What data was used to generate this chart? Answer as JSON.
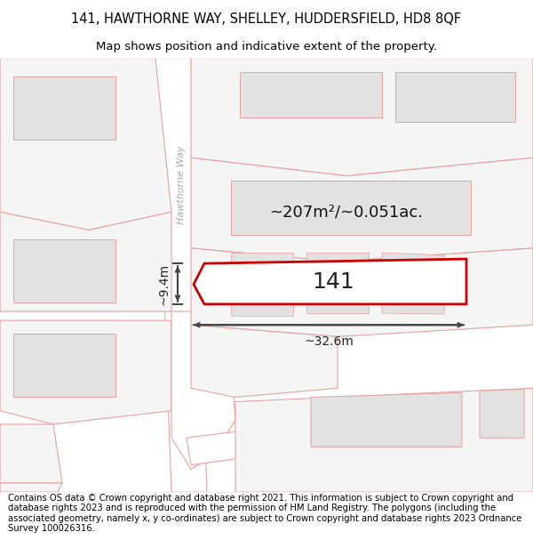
{
  "title_line1": "141, HAWTHORNE WAY, SHELLEY, HUDDERSFIELD, HD8 8QF",
  "title_line2": "Map shows position and indicative extent of the property.",
  "footer_text": "Contains OS data © Crown copyright and database right 2021. This information is subject to Crown copyright and database rights 2023 and is reproduced with the permission of HM Land Registry. The polygons (including the associated geometry, namely x, y co-ordinates) are subject to Crown copyright and database rights 2023 Ordnance Survey 100026316.",
  "bg_color": "#ffffff",
  "plot_outline_color": "#e8a0a0",
  "highlight_color": "#cc0000",
  "building_fill": "#e2e2e2",
  "plot_fill": "#f5f5f5",
  "road_fill": "#ffffff",
  "street_label": "Hawthorne Way",
  "property_label": "141",
  "area_label": "~207m²/~0.051ac.",
  "width_label": "~32.6m",
  "height_label": "~9.4m",
  "title_fontsize": 10.5,
  "subtitle_fontsize": 9.5,
  "footer_fontsize": 7.2
}
